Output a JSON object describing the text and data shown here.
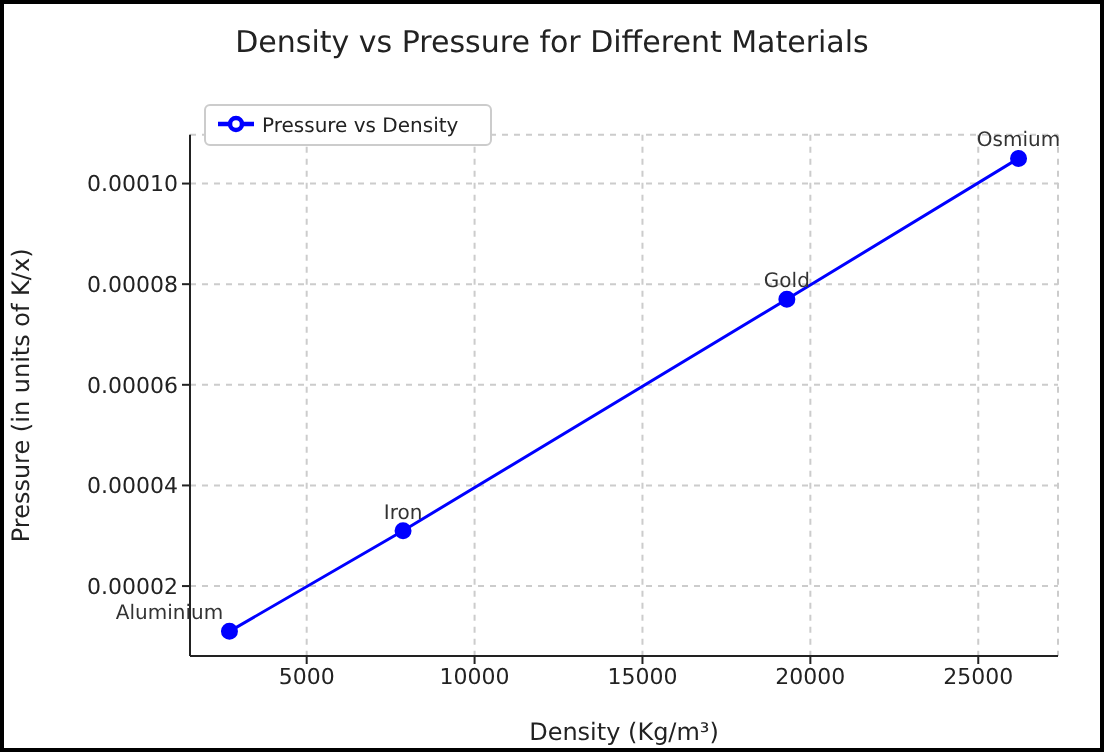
{
  "chart_data": {
    "type": "line",
    "title": "Density vs Pressure for Different Materials",
    "xlabel": "Density (Kg/m³)",
    "ylabel": "Pressure (in units of K/x)",
    "x": [
      2700,
      7870,
      19300,
      26200
    ],
    "series": [
      {
        "name": "Pressure vs Density",
        "color": "#0000ff",
        "values": [
          1.1e-05,
          3.1e-05,
          7.7e-05,
          0.000105
        ]
      }
    ],
    "xlim": [
      1525,
      27375
    ],
    "xticks": [
      5000,
      10000,
      15000,
      20000,
      25000
    ],
    "ylim": [
      6.1e-06,
      0.0001097
    ],
    "yticks": [
      {
        "value": 2e-05,
        "label": "0.00002"
      },
      {
        "value": 4e-05,
        "label": "0.00004"
      },
      {
        "value": 6e-05,
        "label": "0.00006"
      },
      {
        "value": 8e-05,
        "label": "0.00008"
      },
      {
        "value": 0.0001,
        "label": "0.00010"
      }
    ],
    "annotations": [
      {
        "text": "Aluminium",
        "x": 2700,
        "y": 1.1e-05
      },
      {
        "text": "Iron",
        "x": 7870,
        "y": 3.1e-05
      },
      {
        "text": "Gold",
        "x": 19300,
        "y": 7.7e-05
      },
      {
        "text": "Osmium",
        "x": 26200,
        "y": 0.000105
      }
    ],
    "grid": true,
    "legend": "top left",
    "marker": "circle",
    "line_style": "solid"
  }
}
